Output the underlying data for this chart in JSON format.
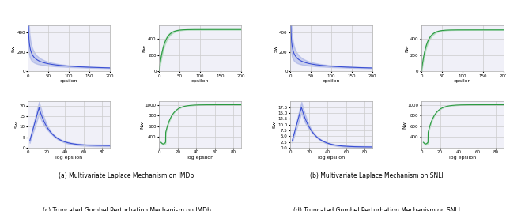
{
  "fig_width": 6.4,
  "fig_height": 2.67,
  "dpi": 100,
  "captions": [
    "(a) Multivariate Laplace Mechanism on IMDb",
    "(b) Multivariate Laplace Mechanism on SNLI",
    "(c) Truncated Gumbel Perturbation Mechanism on IMDb",
    "(d) Truncated Gumbel Perturbation Mechanism on SNLI"
  ],
  "blue_color": "#3a4fd4",
  "blue_fill": "#8090dd",
  "green_color": "#2a9a40",
  "green_fill": "#80cc90",
  "grid_color": "#cccccc",
  "bg_color": "#f0f0f8"
}
